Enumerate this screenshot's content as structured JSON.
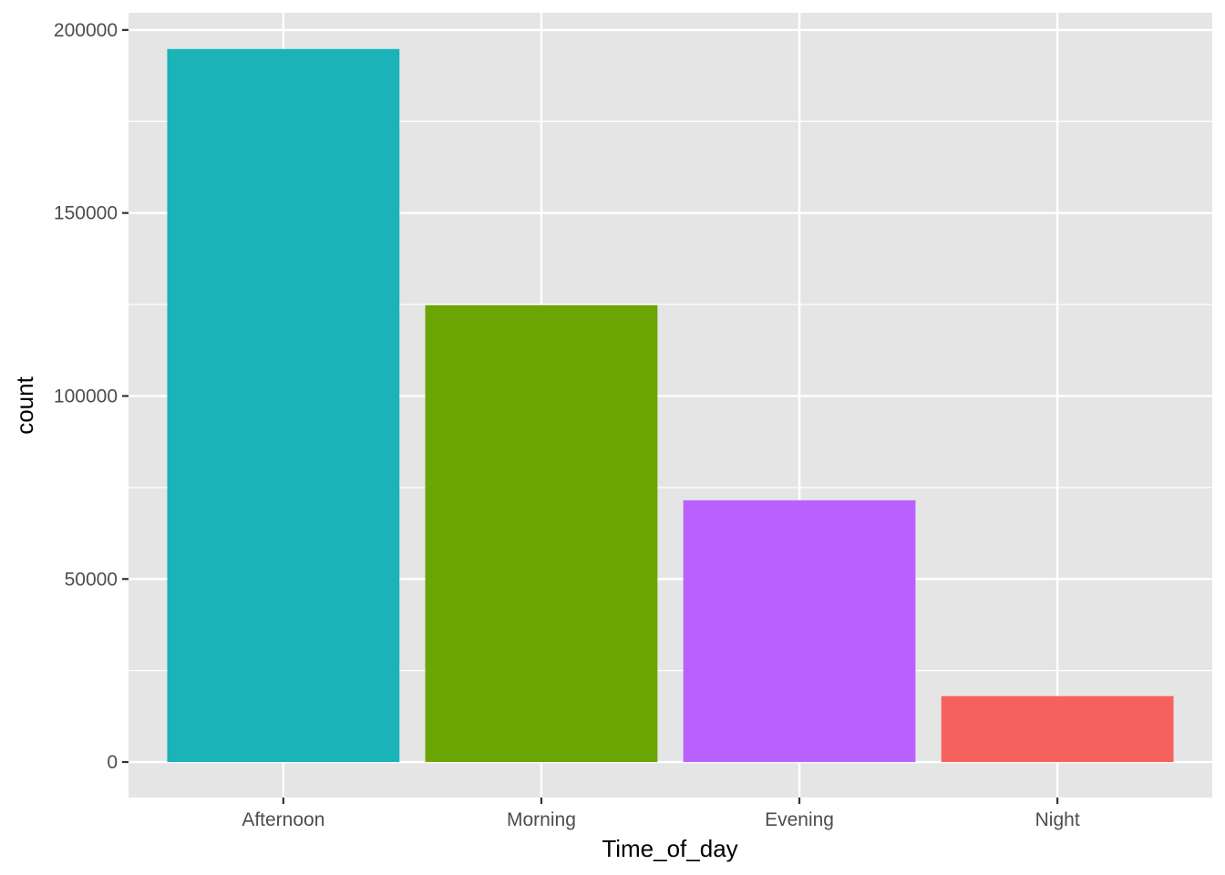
{
  "chart_data": {
    "type": "bar",
    "xlabel": "Time_of_day",
    "ylabel": "count",
    "categories": [
      "Afternoon",
      "Morning",
      "Evening",
      "Night"
    ],
    "values": [
      194800,
      124800,
      71500,
      18000
    ],
    "colors": [
      "#19B3B8",
      "#6BA503",
      "#B961FF",
      "#F5625D"
    ],
    "ylim": [
      -9700,
      204700
    ],
    "yticks": [
      0,
      50000,
      100000,
      150000,
      200000
    ],
    "ytick_labels": [
      "0",
      "50000",
      "100000",
      "150000",
      "200000"
    ],
    "grid": true,
    "legend": "none",
    "panel_background": "#E5E5E5",
    "grid_color": "#FFFFFF"
  }
}
